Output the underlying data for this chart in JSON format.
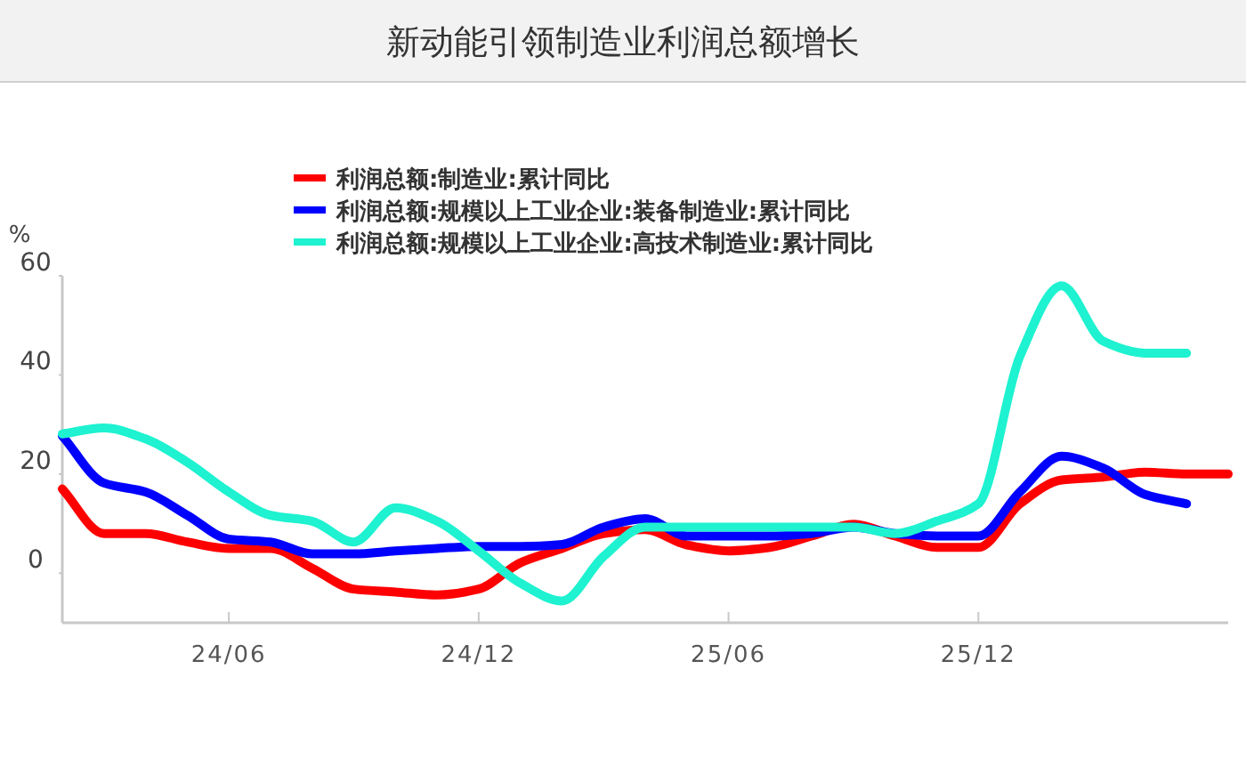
{
  "chart_data": {
    "type": "line",
    "title": "新动能引领制造业利润总额增长",
    "ylabel": "%",
    "categories": [
      null,
      null,
      null,
      null,
      "24/06",
      null,
      null,
      null,
      null,
      null,
      "24/12",
      null,
      null,
      null,
      null,
      null,
      "25/06",
      null,
      null,
      null,
      null,
      null,
      "25/12",
      null,
      null,
      null,
      null,
      null,
      null
    ],
    "series": [
      {
        "name": "利润总额:制造业:累计同比",
        "color": "#ff0000",
        "values": [
          17,
          8,
          8,
          6.3,
          5,
          5,
          1,
          -3.2,
          -3.8,
          -4.4,
          -3.2,
          2.1,
          5,
          8,
          8.8,
          5.7,
          4.5,
          5.2,
          7.5,
          9.9,
          7.5,
          5.2,
          5.2,
          14,
          18.8,
          19.4,
          20.4,
          20,
          20
        ]
      },
      {
        "name": "利润总额:规模以上工业企业:装备制造业:累计同比",
        "color": "#0000ff",
        "values": [
          27.7,
          18.2,
          16.4,
          11.7,
          6.9,
          6.3,
          3.9,
          3.9,
          4.5,
          5,
          5.4,
          5.4,
          5.8,
          9.3,
          11,
          7.5,
          7.5,
          7.5,
          8,
          9.3,
          8,
          7.5,
          7.5,
          16.4,
          23.6,
          21.2,
          15.9,
          14,
          null
        ]
      },
      {
        "name": "利润总额:规模以上工业企业:高技术制造业:累计同比",
        "color": "#1ef2d0",
        "values": [
          28.1,
          29.3,
          27.1,
          22.4,
          16.4,
          11.7,
          10.5,
          6.3,
          13.2,
          10.5,
          4.5,
          -2,
          -5.6,
          3.4,
          9.3,
          9.3,
          9.3,
          9.3,
          9.3,
          9.3,
          8,
          10.5,
          14,
          43.8,
          58,
          46.8,
          44.4,
          44.4,
          null
        ]
      }
    ],
    "ylim": [
      -10,
      60
    ],
    "yticks": [
      0,
      20,
      40,
      60
    ],
    "legend": "top"
  }
}
